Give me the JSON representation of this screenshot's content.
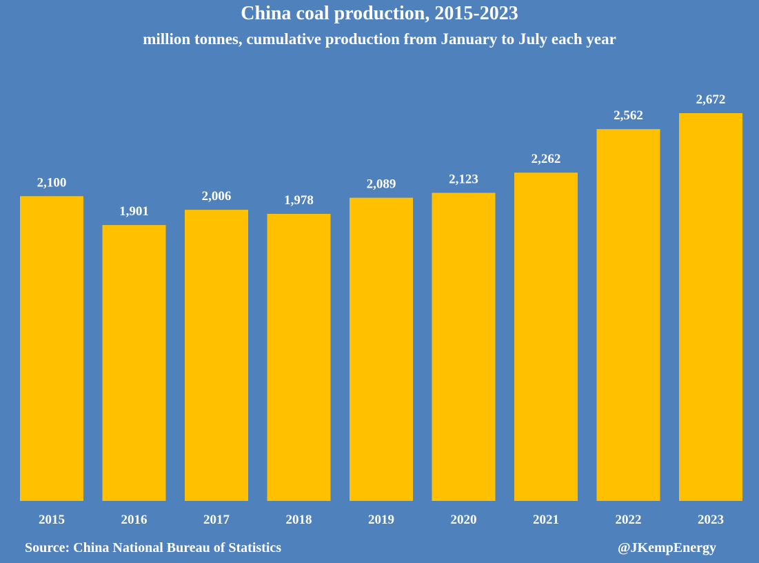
{
  "chart_data": {
    "type": "bar",
    "title": "China coal production, 2015-2023",
    "subtitle": "million tonnes, cumulative production from January to July each year",
    "categories": [
      "2015",
      "2016",
      "2017",
      "2018",
      "2019",
      "2020",
      "2021",
      "2022",
      "2023"
    ],
    "values": [
      2100,
      1901,
      2006,
      1978,
      2089,
      2123,
      2262,
      2562,
      2672
    ],
    "value_labels": [
      "2,100",
      "1,901",
      "2,006",
      "1,978",
      "2,089",
      "2,123",
      "2,262",
      "2,562",
      "2,672"
    ],
    "xlabel": "",
    "ylabel": "",
    "ylim": [
      0,
      2672
    ],
    "grid": false,
    "legend": "none",
    "bar_color": "#ffc000",
    "background_color": "#4f81bd"
  },
  "footer": {
    "source": "Source: China National Bureau of Statistics",
    "handle": "@JKempEnergy"
  }
}
